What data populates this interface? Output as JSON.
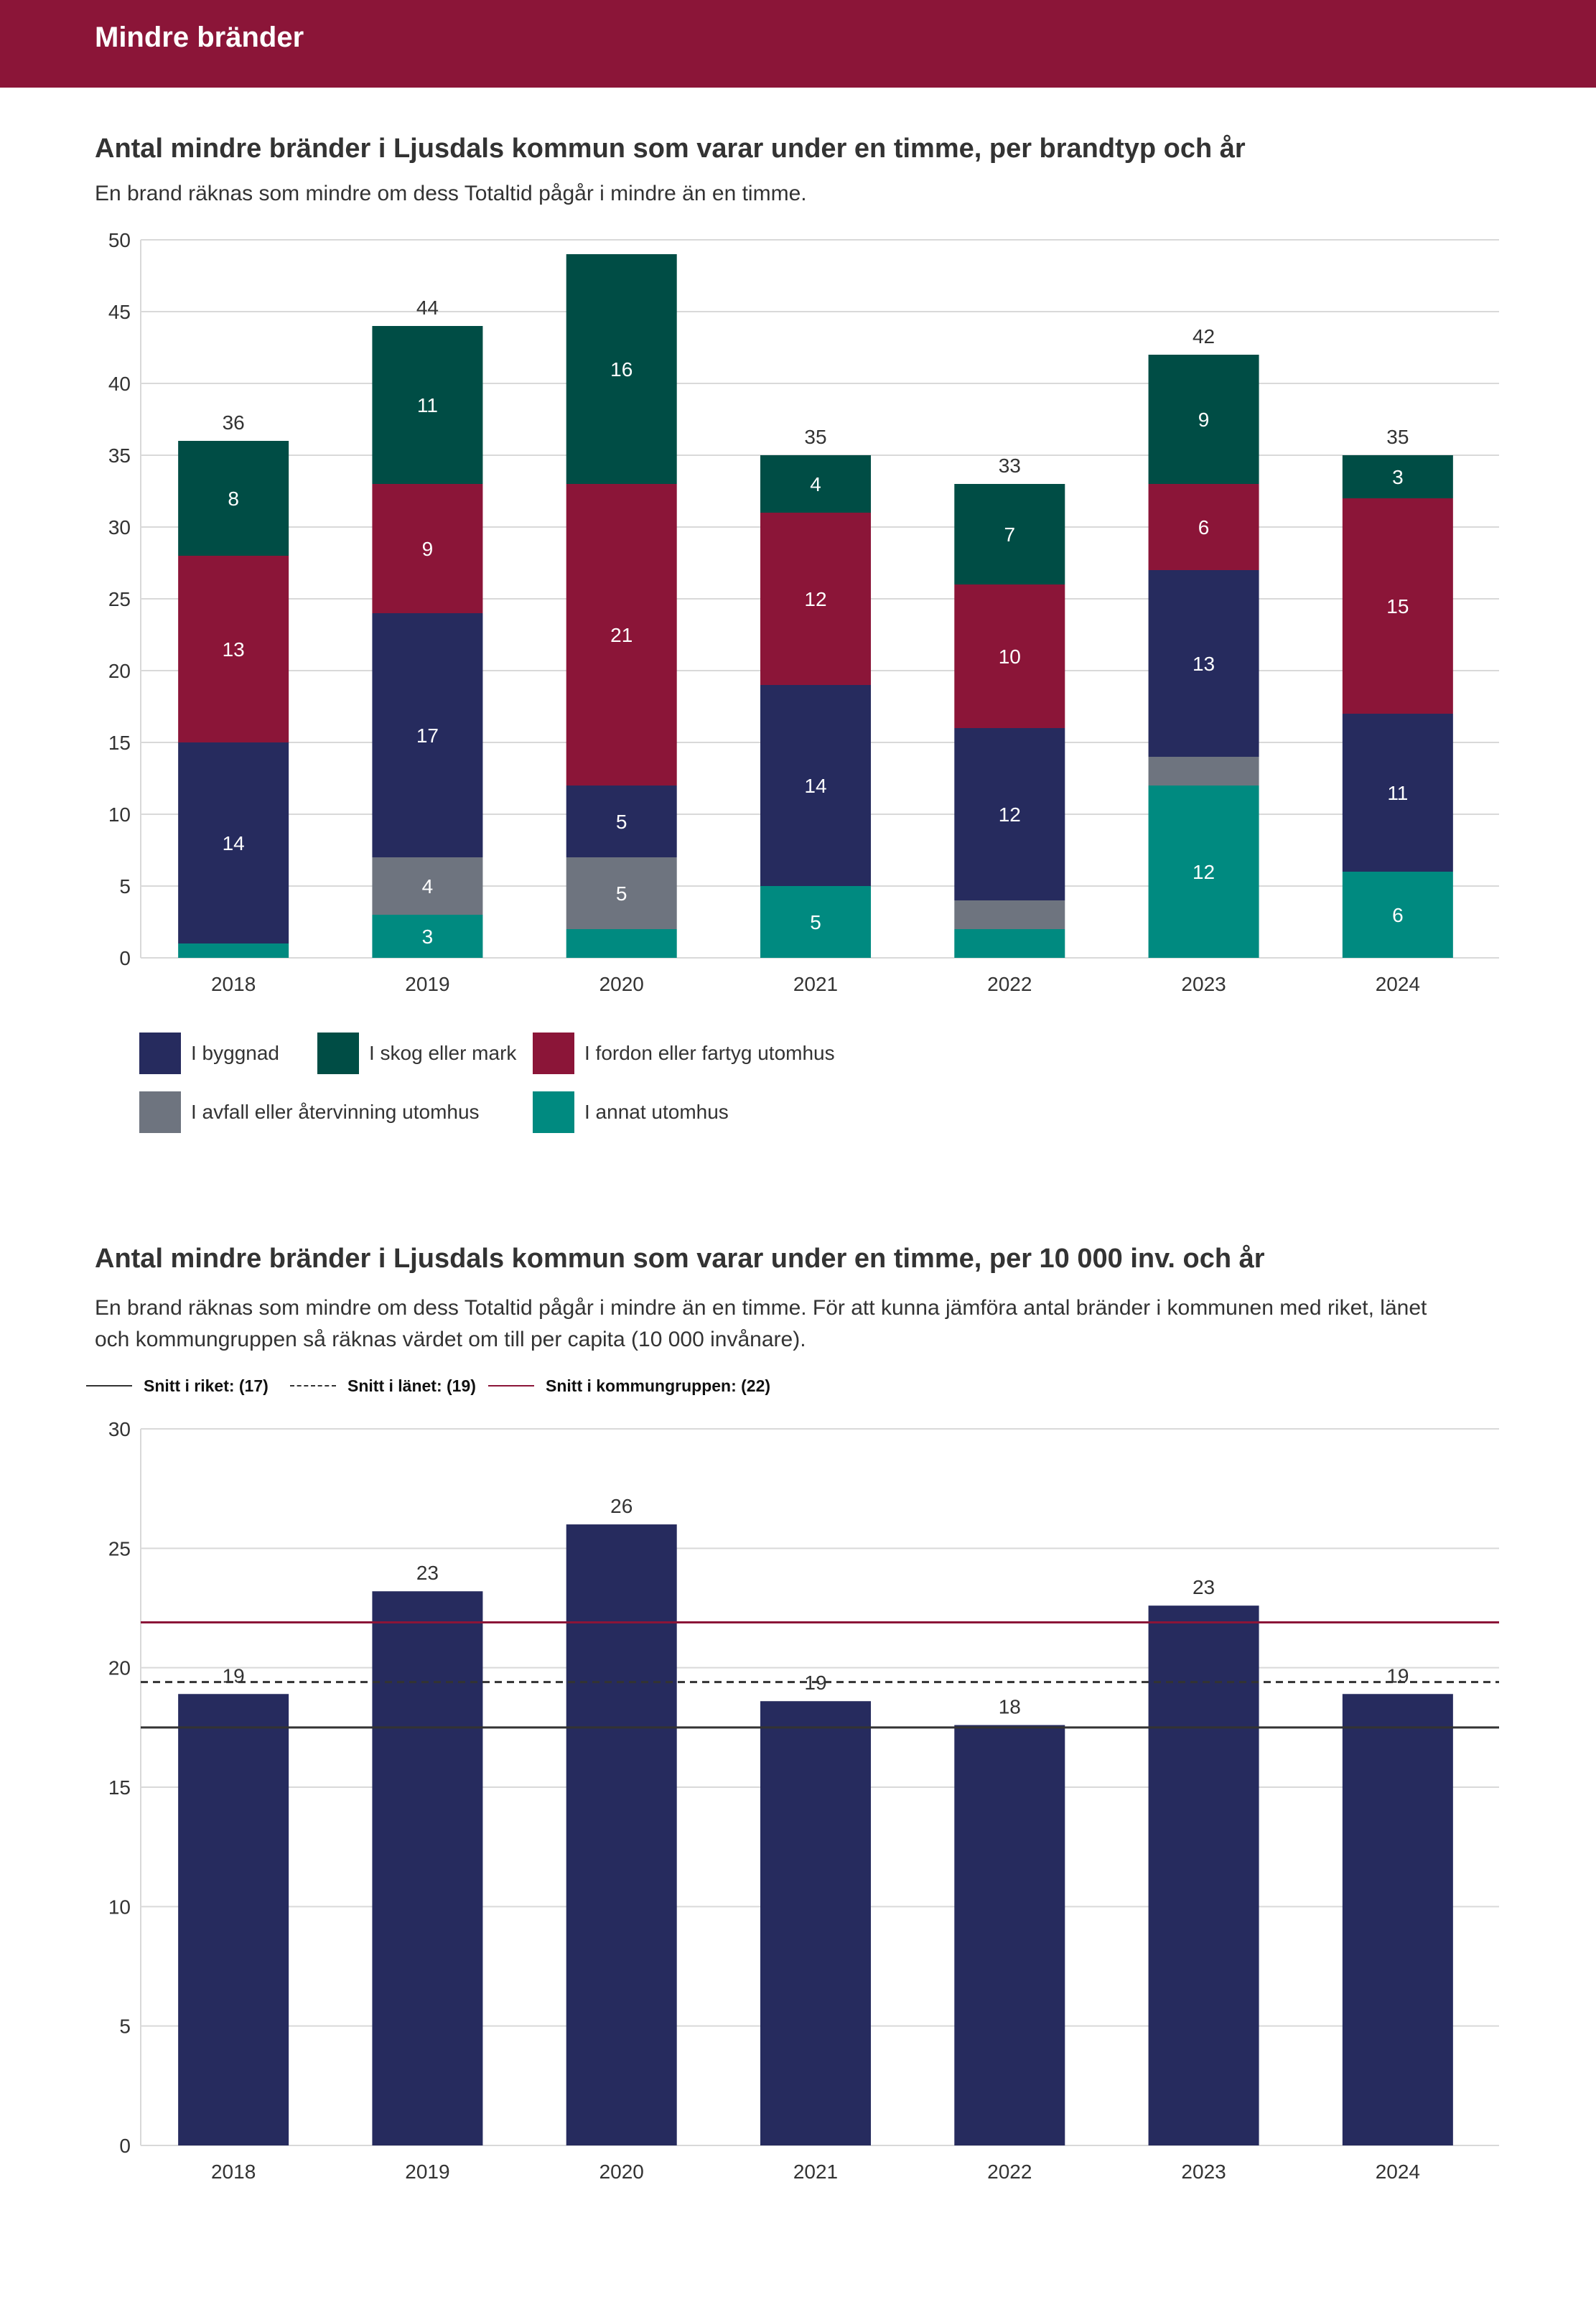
{
  "header": {
    "title": "Mindre bränder"
  },
  "colors": {
    "header": "#8b1538",
    "byggnad": "#262b5e",
    "skog": "#004d45",
    "fordon": "#8b1538",
    "avfall": "#6e747f",
    "annat": "#008a80",
    "grid": "#d9d9d9",
    "axis_text": "#333333"
  },
  "chart1": {
    "title": "Antal mindre bränder i Ljusdals kommun som varar under en timme, per brandtyp och år",
    "subtitle": "En brand räknas som mindre om dess Totaltid pågår i mindre än en timme.",
    "legend": [
      {
        "key": "byggnad",
        "label": "I byggnad"
      },
      {
        "key": "skog",
        "label": "I skog eller mark"
      },
      {
        "key": "fordon",
        "label": "I fordon eller fartyg utomhus"
      },
      {
        "key": "avfall",
        "label": "I avfall eller återvinning utomhus"
      },
      {
        "key": "annat",
        "label": "I annat utomhus"
      }
    ]
  },
  "chart2": {
    "title": "Antal mindre bränder i Ljusdals kommun som varar under en timme, per 10 000 inv. och år",
    "subtitle_line1": "En brand räknas som mindre om dess Totaltid pågår i mindre än en timme. För att kunna jämföra antal bränder i kommunen med riket, länet",
    "subtitle_line2": "och kommungruppen så räknas värdet om till per capita (10 000 invånare).",
    "reference_lines": [
      {
        "key": "riket",
        "label": "Snitt i riket: (17)",
        "value": 17.5,
        "style": "solid",
        "color": "#333333"
      },
      {
        "key": "lanet",
        "label": "Snitt i länet: (19)",
        "value": 19.4,
        "style": "dashed",
        "color": "#333333"
      },
      {
        "key": "kommungruppen",
        "label": "Snitt i kommungruppen: (22)",
        "value": 21.9,
        "style": "solid",
        "color": "#8b1538"
      }
    ]
  },
  "chart_data": [
    {
      "type": "bar",
      "stacked": true,
      "title": "Antal mindre bränder i Ljusdals kommun som varar under en timme, per brandtyp och år",
      "categories": [
        "2018",
        "2019",
        "2020",
        "2021",
        "2022",
        "2023",
        "2024"
      ],
      "ylim": [
        0,
        50
      ],
      "yticks": [
        0,
        5,
        10,
        15,
        20,
        25,
        30,
        35,
        40,
        45,
        50
      ],
      "grid": true,
      "legend_position": "bottom-left",
      "series": [
        {
          "key": "annat",
          "name": "I annat utomhus",
          "values": [
            1,
            3,
            2,
            5,
            2,
            12,
            6
          ],
          "labels": [
            "",
            "3",
            "",
            "5",
            "",
            "12",
            "6"
          ]
        },
        {
          "key": "avfall",
          "name": "I avfall eller återvinning utomhus",
          "values": [
            0,
            4,
            5,
            0,
            2,
            2,
            0
          ],
          "labels": [
            "",
            "4",
            "5",
            "",
            "",
            "",
            ""
          ]
        },
        {
          "key": "byggnad",
          "name": "I byggnad",
          "values": [
            14,
            17,
            5,
            14,
            12,
            13,
            11
          ],
          "labels": [
            "14",
            "17",
            "5",
            "14",
            "12",
            "13",
            "11"
          ]
        },
        {
          "key": "fordon",
          "name": "I fordon eller fartyg utomhus",
          "values": [
            13,
            9,
            21,
            12,
            10,
            6,
            15
          ],
          "labels": [
            "13",
            "9",
            "21",
            "12",
            "10",
            "6",
            "15"
          ]
        },
        {
          "key": "skog",
          "name": "I skog eller mark",
          "values": [
            8,
            11,
            16,
            4,
            7,
            9,
            3
          ],
          "labels": [
            "8",
            "11",
            "16",
            "4",
            "7",
            "9",
            "3"
          ]
        }
      ],
      "totals": [
        "36",
        "44",
        "",
        "35",
        "33",
        "42",
        "35"
      ]
    },
    {
      "type": "bar",
      "title": "Antal mindre bränder i Ljusdals kommun som varar under en timme, per 10 000 inv. och år",
      "categories": [
        "2018",
        "2019",
        "2020",
        "2021",
        "2022",
        "2023",
        "2024"
      ],
      "values": [
        18.9,
        23.2,
        26.0,
        18.6,
        17.6,
        22.6,
        18.9
      ],
      "labels": [
        "19",
        "23",
        "26",
        "19",
        "18",
        "23",
        "19"
      ],
      "ylim": [
        0,
        30
      ],
      "yticks": [
        0,
        5,
        10,
        15,
        20,
        25,
        30
      ],
      "grid": true
    }
  ]
}
